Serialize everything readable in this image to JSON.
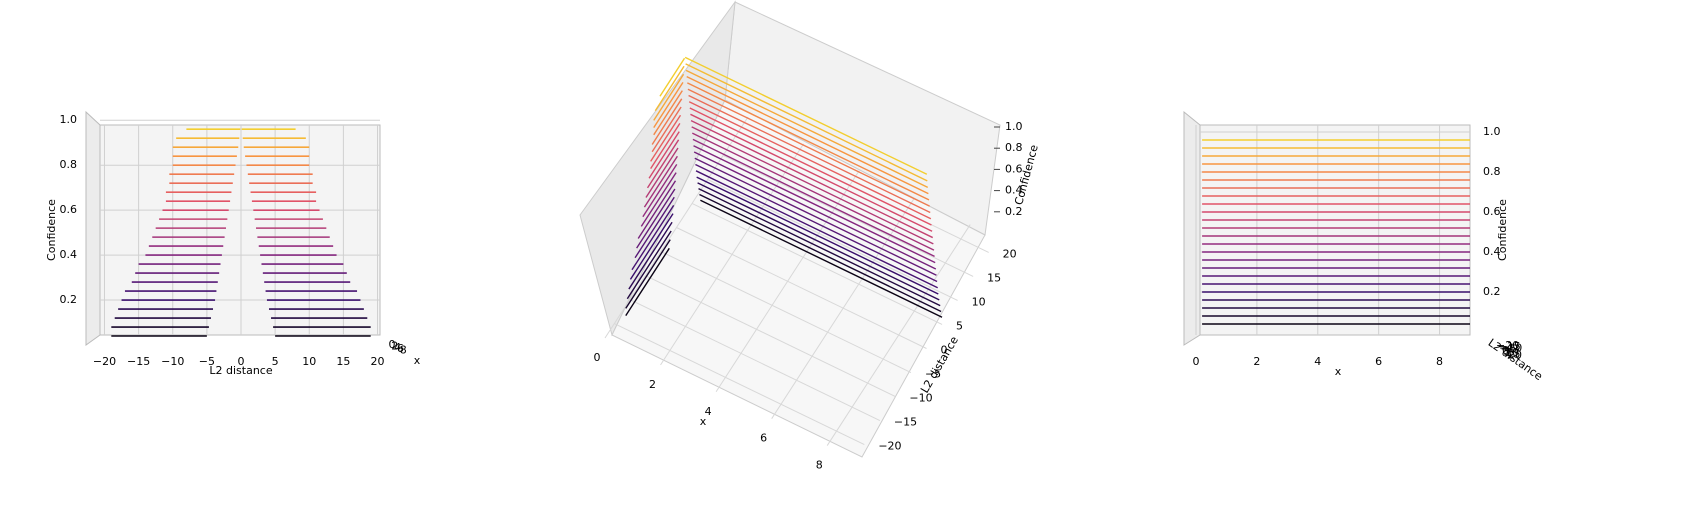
{
  "chart_data": {
    "type": "surface3d",
    "colormap": [
      "#0d0887",
      "#000000",
      "#3b0f70",
      "#8c2981",
      "#e0506a",
      "#f89540",
      "#f0f921"
    ],
    "levels": [
      0.04,
      0.08,
      0.12,
      0.16,
      0.2,
      0.24,
      0.28,
      0.32,
      0.36,
      0.4,
      0.44,
      0.48,
      0.52,
      0.56,
      0.6,
      0.64,
      0.68,
      0.72,
      0.76,
      0.8,
      0.84,
      0.88,
      0.92,
      0.96
    ],
    "outer": [
      19,
      19,
      18.5,
      18,
      17.5,
      17,
      16,
      15.5,
      15,
      14,
      13.5,
      13,
      12.5,
      12,
      11.5,
      11,
      11,
      10.5,
      10.5,
      10,
      10,
      10,
      9.5,
      8
    ],
    "inner": [
      5,
      4.7,
      4.4,
      4.1,
      3.8,
      3.6,
      3.4,
      3.2,
      3.0,
      2.8,
      2.6,
      2.4,
      2.2,
      2.0,
      1.8,
      1.6,
      1.4,
      1.2,
      1.0,
      0.8,
      0.6,
      0.4,
      0.25,
      0.1
    ],
    "xlim": [
      0,
      9
    ],
    "ylim": [
      -23,
      23
    ],
    "zlim": [
      0,
      1.05
    ],
    "grid": true,
    "panels": [
      {
        "view": "front",
        "xlabel": "x",
        "ylabel": "L2 distance",
        "zlabel": "Confidence",
        "xticks": [
          0,
          2,
          4,
          6,
          8
        ],
        "yticks": [
          {
            "value": -20,
            "label": "−20"
          },
          {
            "value": -15,
            "label": "−15"
          },
          {
            "value": -10,
            "label": "−10"
          },
          {
            "value": -5,
            "label": "−5"
          },
          0,
          5,
          10,
          15,
          20
        ],
        "zticks": [
          0.2,
          0.4,
          0.6,
          0.8,
          {
            "value": 1,
            "label": "1.0"
          }
        ]
      },
      {
        "view": "oblique",
        "xlabel": "x",
        "ylabel": "L2 distance",
        "zlabel": "Confidence",
        "xticks": [
          0,
          2,
          4,
          6,
          8
        ],
        "yticks": [
          {
            "value": -20,
            "label": "−20"
          },
          {
            "value": -15,
            "label": "−15"
          },
          {
            "value": -10,
            "label": "−10"
          },
          {
            "value": -5,
            "label": "−5"
          },
          0,
          5,
          10,
          15,
          20
        ],
        "zticks": [
          0.2,
          0.4,
          0.6,
          0.8,
          {
            "value": 1,
            "label": "1.0"
          }
        ]
      },
      {
        "view": "side",
        "xlabel": "x",
        "ylabel": "L2 distance",
        "zlabel": "Confidence",
        "xticks": [
          0,
          2,
          4,
          6,
          8
        ],
        "yticks": [
          {
            "value": -20,
            "label": "−20"
          },
          {
            "value": -15,
            "label": "−15"
          },
          {
            "value": -10,
            "label": "−10"
          },
          {
            "value": -5,
            "label": "−5"
          },
          0,
          5,
          10,
          15,
          20
        ],
        "zticks": [
          0.2,
          0.4,
          0.6,
          0.8,
          {
            "value": 1,
            "label": "1.0"
          }
        ]
      }
    ]
  }
}
